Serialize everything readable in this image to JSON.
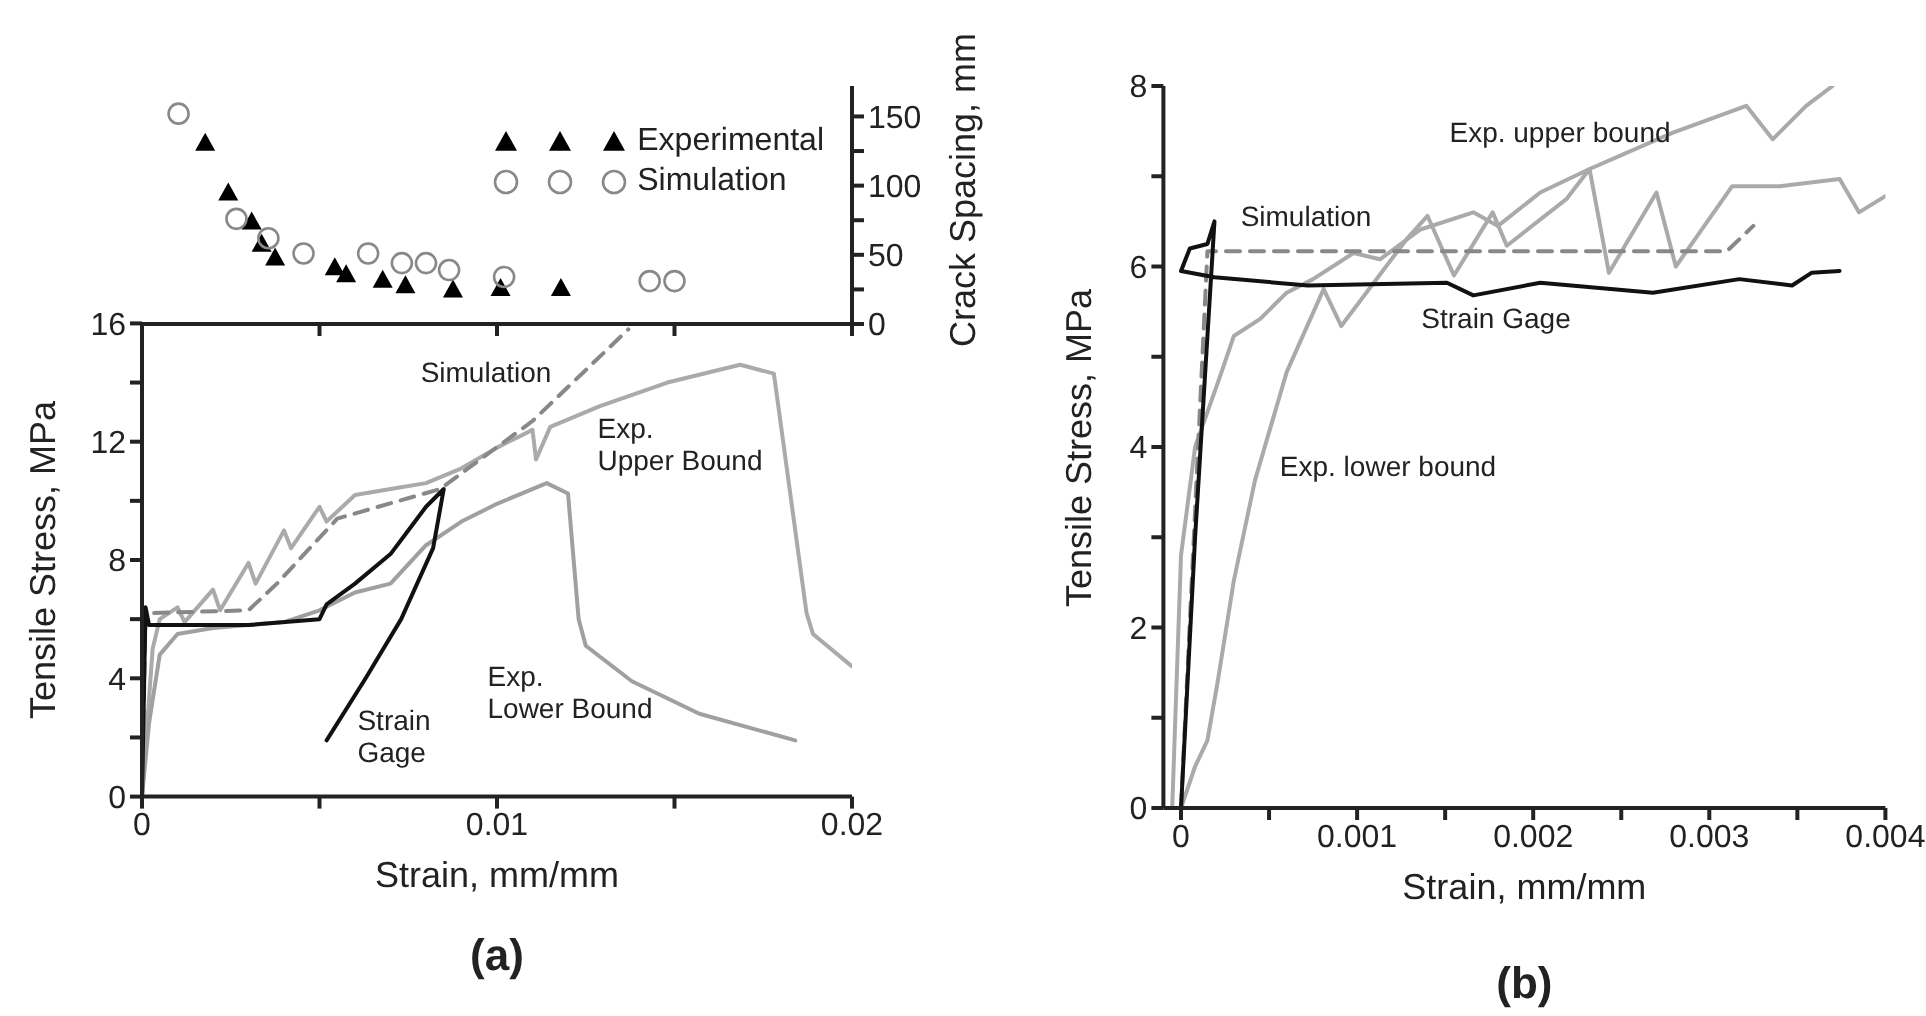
{
  "chart_data": [
    {
      "type": "scatter",
      "y2label": "Crack Spacing, mm",
      "xlim": [
        0,
        0.02
      ],
      "xticks": [
        0,
        0.005,
        0.01,
        0.015,
        0.02
      ],
      "y2lim": [
        0,
        172
      ],
      "y2ticks": [
        0,
        {
          "value": 25,
          "label": null
        },
        50,
        {
          "value": 75,
          "label": null
        },
        100,
        {
          "value": 125,
          "label": null
        },
        150
      ],
      "tick_labels": "y",
      "legend": "top right",
      "series": [
        {
          "name": "Experimental",
          "color": "#000000",
          "marker": "triangle",
          "axis": "y2",
          "x": [
            0.00178,
            0.00243,
            0.00309,
            0.00337,
            0.00375,
            0.00543,
            0.00575,
            0.00678,
            0.00742,
            0.00876,
            0.0101,
            0.0118
          ],
          "values": [
            131,
            95,
            74,
            58,
            48,
            41,
            36,
            32,
            28,
            25,
            26,
            26
          ]
        },
        {
          "name": "Simulation",
          "color": "#888888",
          "marker": "circle",
          "axis": "y2",
          "x": [
            0.00103,
            0.00266,
            0.00356,
            0.00455,
            0.00637,
            0.00732,
            0.008,
            0.00865,
            0.0102,
            0.0143,
            0.015
          ],
          "values": [
            152,
            76,
            62,
            51,
            51,
            44,
            44,
            39,
            34,
            31,
            31
          ]
        }
      ]
    },
    {
      "type": "line",
      "xlabel": "Strain, mm/mm",
      "ylabel": "Tensile Stress, MPa",
      "xlim": [
        0,
        0.02
      ],
      "xticks": [
        0,
        {
          "value": 0.005,
          "label": null
        },
        0.01,
        {
          "value": 0.015,
          "label": null
        },
        0.02
      ],
      "ylim": [
        0,
        16
      ],
      "yticks": [
        0,
        {
          "value": 2,
          "label": null
        },
        4,
        {
          "value": 6,
          "label": null
        },
        8,
        {
          "value": 10,
          "label": null
        },
        12,
        {
          "value": 14,
          "label": null
        },
        16
      ],
      "annotations": [
        "(a)"
      ],
      "series": [
        {
          "name": "Exp. Upper Bound",
          "color": "#aaaaaa",
          "line_style": "solid",
          "x": [
            0,
            0.0003,
            0.0005,
            0.001,
            0.0012,
            0.002,
            0.0022,
            0.003,
            0.0032,
            0.004,
            0.0042,
            0.005,
            0.0052,
            0.006,
            0.007,
            0.008,
            0.009,
            0.01,
            0.011,
            0.0111,
            0.0115,
            0.0129,
            0.0148,
            0.01685,
            0.0178,
            0.01872,
            0.0189,
            0.02
          ],
          "values": [
            0,
            5,
            6,
            6.4,
            5.9,
            7,
            6.3,
            7.9,
            7.2,
            9,
            8.4,
            9.8,
            9.3,
            10.2,
            10.4,
            10.6,
            11.1,
            11.8,
            12.4,
            11.4,
            12.5,
            13.2,
            14,
            14.6,
            14.3,
            6.2,
            5.5,
            4.4
          ]
        },
        {
          "name": "Exp. Lower Bound",
          "color": "#a0a0a0",
          "line_style": "solid",
          "x": [
            0,
            0.0002,
            0.0005,
            0.001,
            0.002,
            0.003,
            0.004,
            0.005,
            0.006,
            0.007,
            0.008,
            0.009,
            0.01,
            0.0114,
            0.012,
            0.0123,
            0.0125,
            0.0138,
            0.0157,
            0.0184
          ],
          "values": [
            0,
            2.5,
            4.8,
            5.5,
            5.7,
            5.8,
            5.9,
            6.3,
            6.9,
            7.2,
            8.5,
            9.3,
            9.9,
            10.6,
            10.25,
            6,
            5.1,
            3.9,
            2.8,
            1.9
          ]
        },
        {
          "name": "Simulation",
          "color": "#888888",
          "line_style": "dashed",
          "x": [
            0,
            0.0001,
            0.003,
            0.0038,
            0.0055,
            0.0084,
            0.011,
            0.0137
          ],
          "values": [
            0,
            6.2,
            6.3,
            7.2,
            9.4,
            10.4,
            12.7,
            15.8
          ]
        },
        {
          "name": "Strain Gage",
          "color": "#111111",
          "line_style": "solid",
          "x": [
            0,
            0.0001,
            0.0002,
            0.003,
            0.005,
            0.0052,
            0.006,
            0.007,
            0.0075,
            0.008,
            0.0085,
            0.0082,
            0.0073,
            0.0063,
            0.0052
          ],
          "values": [
            0,
            6.4,
            5.8,
            5.8,
            6,
            6.5,
            7.2,
            8.2,
            9,
            9.8,
            10.4,
            8.4,
            6,
            4,
            1.9
          ]
        }
      ]
    },
    {
      "type": "line",
      "xlabel": "Strain, mm/mm",
      "ylabel": "Tensile Stress, MPa",
      "xlim": [
        -0.0001,
        0.004
      ],
      "xticks": [
        0,
        {
          "value": 0.0005,
          "label": null
        },
        0.001,
        {
          "value": 0.0015,
          "label": null
        },
        0.002,
        {
          "value": 0.0025,
          "label": null
        },
        0.003,
        {
          "value": 0.0035,
          "label": null
        },
        0.004
      ],
      "ylim": [
        0,
        8
      ],
      "yticks": [
        0,
        {
          "value": 1,
          "label": null
        },
        2,
        {
          "value": 3,
          "label": null
        },
        4,
        {
          "value": 5,
          "label": null
        },
        6,
        {
          "value": 7,
          "label": null
        },
        8
      ],
      "annotations": [
        "(b)"
      ],
      "series": [
        {
          "name": "Exp. upper bound",
          "color": "#aaaaaa",
          "line_style": "solid",
          "x": [
            -5e-05,
            0,
            8e-05,
            0.00023,
            0.0003,
            0.00045,
            0.0006,
            0.00075,
            0.00098,
            0.00113,
            0.00136,
            0.00166,
            0.0018,
            0.00204,
            0.00232,
            0.00279,
            0.00321,
            0.00336,
            0.00355,
            0.0037
          ],
          "values": [
            0,
            2.8,
            4,
            4.83,
            5.23,
            5.42,
            5.71,
            5.86,
            6.15,
            6.08,
            6.41,
            6.6,
            6.45,
            6.82,
            7.08,
            7.48,
            7.78,
            7.41,
            7.78,
            8
          ]
        },
        {
          "name": "Exp. lower bound",
          "color": "#aaaaaa",
          "line_style": "solid",
          "x": [
            0,
            8e-05,
            0.00015,
            0.00021,
            0.0003,
            0.00042,
            0.0006,
            0.00081,
            0.00091,
            0.00128,
            0.0014,
            0.00155,
            0.00177,
            0.00185,
            0.00219,
            0.00232,
            0.00243,
            0.0027,
            0.00281,
            0.00313,
            0.0034,
            0.00374,
            0.00385,
            0.004
          ],
          "values": [
            0,
            0.46,
            0.75,
            1.42,
            2.52,
            3.63,
            4.83,
            5.75,
            5.34,
            6.3,
            6.56,
            5.9,
            6.6,
            6.23,
            6.75,
            7.08,
            5.93,
            6.82,
            6,
            6.89,
            6.89,
            6.97,
            6.6,
            6.78
          ]
        },
        {
          "name": "Simulation",
          "color": "#888888",
          "line_style": "dashed",
          "x": [
            0,
            0.00015,
            0.0031,
            0.00325
          ],
          "values": [
            0,
            6.17,
            6.17,
            6.45
          ]
        },
        {
          "name": "Strain Gage",
          "color": "#111111",
          "line_style": "solid",
          "x": [
            0,
            8e-05,
            0.00019,
            0.00015,
            5e-05,
            0,
            0.00019,
            0.00072,
            0.00151,
            0.00166,
            0.00204,
            0.00268,
            0.00317,
            0.00347,
            0.00358,
            0.00374
          ],
          "values": [
            0,
            3,
            6.5,
            6.25,
            6.2,
            5.95,
            5.88,
            5.79,
            5.82,
            5.68,
            5.82,
            5.71,
            5.86,
            5.79,
            5.93,
            5.95
          ]
        }
      ]
    }
  ]
}
